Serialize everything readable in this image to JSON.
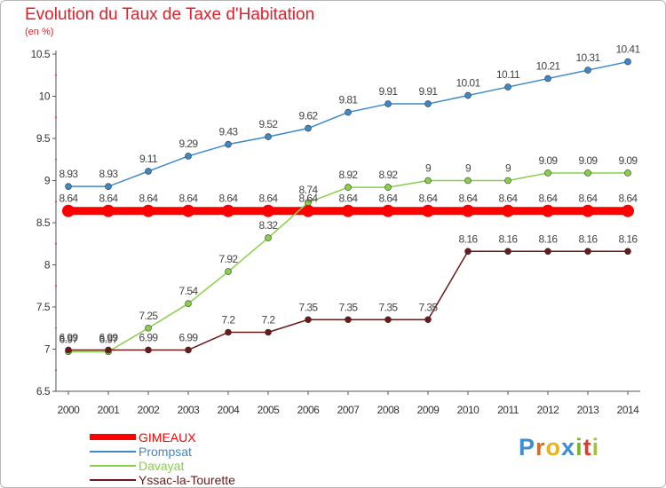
{
  "title": "Evolution du Taux de Taxe d'Habitation",
  "subtitle": "(en %)",
  "colors": {
    "title": "#e0202a",
    "axis": "#555555",
    "grid_marks": "#e0202a"
  },
  "logo": {
    "letters": [
      {
        "ch": "P",
        "color": "#3a8fd4"
      },
      {
        "ch": "r",
        "color": "#e06a1a"
      },
      {
        "ch": "o",
        "color": "#e8b21a"
      },
      {
        "ch": "x",
        "color": "#3a8fd4"
      },
      {
        "ch": "i",
        "color": "#7ab62a"
      },
      {
        "ch": "t",
        "color": "#e03a2a"
      },
      {
        "ch": "i",
        "color": "#a0c830"
      }
    ]
  },
  "chart_data": {
    "type": "line",
    "title": "Evolution du Taux de Taxe d'Habitation",
    "ylabel": "(en %)",
    "xlabel": "",
    "x": [
      "2000",
      "2001",
      "2002",
      "2003",
      "2004",
      "2005",
      "2006",
      "2007",
      "2008",
      "2009",
      "2010",
      "2011",
      "2012",
      "2013",
      "2014"
    ],
    "ylim": [
      6.5,
      10.5
    ],
    "yticks": [
      "6.5",
      "7",
      "7.5",
      "8",
      "8.5",
      "9",
      "9.5",
      "10",
      "10.5"
    ],
    "grid": false,
    "legend_position": "bottom-left",
    "series": [
      {
        "name": "GIMEAUX",
        "color": "#ff0000",
        "thick": true,
        "values": [
          8.64,
          8.64,
          8.64,
          8.64,
          8.64,
          8.64,
          8.64,
          8.64,
          8.64,
          8.64,
          8.64,
          8.64,
          8.64,
          8.64,
          8.64
        ],
        "labels": [
          "8.64",
          "8.64",
          "8.64",
          "8.64",
          "8.64",
          "8.64",
          "8.64",
          "8.64",
          "8.64",
          "8.64",
          "8.64",
          "8.64",
          "8.64",
          "8.64",
          "8.64"
        ]
      },
      {
        "name": "Prompsat",
        "color": "#3c88c8",
        "thick": false,
        "values": [
          8.93,
          8.93,
          9.11,
          9.29,
          9.43,
          9.52,
          9.62,
          9.81,
          9.91,
          9.91,
          10.01,
          10.11,
          10.21,
          10.31,
          10.41
        ],
        "labels": [
          "8.93",
          "8.93",
          "9.11",
          "9.29",
          "9.43",
          "9.52",
          "9.62",
          "9.81",
          "9.91",
          "9.91",
          "10.01",
          "10.11",
          "10.21",
          "10.31",
          "10.41"
        ]
      },
      {
        "name": "Davayat",
        "color": "#88d048",
        "thick": false,
        "values": [
          6.97,
          6.97,
          7.25,
          7.54,
          7.92,
          8.32,
          8.74,
          8.92,
          8.92,
          9,
          9,
          9,
          9.09,
          9.09,
          9.09
        ],
        "labels": [
          "6.97",
          "6.97",
          "7.25",
          "7.54",
          "7.92",
          "8.32",
          "8.74",
          "8.92",
          "8.92",
          "9",
          "9",
          "9",
          "9.09",
          "9.09",
          "9.09"
        ]
      },
      {
        "name": "Yssac-la-Tourette",
        "color": "#6a1a1a",
        "thick": false,
        "values": [
          6.99,
          6.99,
          6.99,
          6.99,
          7.2,
          7.2,
          7.35,
          7.35,
          7.35,
          7.35,
          8.16,
          8.16,
          8.16,
          8.16,
          8.16
        ],
        "labels": [
          "6.99",
          "6.99",
          "6.99",
          "6.99",
          "7.2",
          "7.2",
          "7.35",
          "7.35",
          "7.35",
          "7.35",
          "8.16",
          "8.16",
          "8.16",
          "8.16",
          "8.16"
        ]
      }
    ]
  }
}
